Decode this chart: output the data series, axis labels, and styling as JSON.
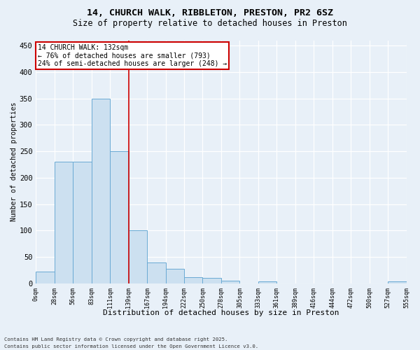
{
  "title_line1": "14, CHURCH WALK, RIBBLETON, PRESTON, PR2 6SZ",
  "title_line2": "Size of property relative to detached houses in Preston",
  "xlabel": "Distribution of detached houses by size in Preston",
  "ylabel": "Number of detached properties",
  "bin_labels": [
    "0sqm",
    "28sqm",
    "56sqm",
    "83sqm",
    "111sqm",
    "139sqm",
    "167sqm",
    "194sqm",
    "222sqm",
    "250sqm",
    "278sqm",
    "305sqm",
    "333sqm",
    "361sqm",
    "389sqm",
    "416sqm",
    "444sqm",
    "472sqm",
    "500sqm",
    "527sqm",
    "555sqm"
  ],
  "bar_values": [
    22,
    230,
    230,
    350,
    250,
    100,
    40,
    27,
    12,
    10,
    5,
    0,
    4,
    0,
    0,
    0,
    0,
    0,
    0,
    4
  ],
  "bar_color": "#cce0f0",
  "bar_edge_color": "#6aaad4",
  "vline_position": 5,
  "vline_color": "#cc0000",
  "annotation_text": "14 CHURCH WALK: 132sqm\n← 76% of detached houses are smaller (793)\n24% of semi-detached houses are larger (248) →",
  "annotation_box_edgecolor": "#cc0000",
  "ylim": [
    0,
    460
  ],
  "yticks": [
    0,
    50,
    100,
    150,
    200,
    250,
    300,
    350,
    400,
    450
  ],
  "footer_line1": "Contains HM Land Registry data © Crown copyright and database right 2025.",
  "footer_line2": "Contains public sector information licensed under the Open Government Licence v3.0.",
  "bg_color": "#e8f0f8",
  "grid_color": "#c8d8e8"
}
